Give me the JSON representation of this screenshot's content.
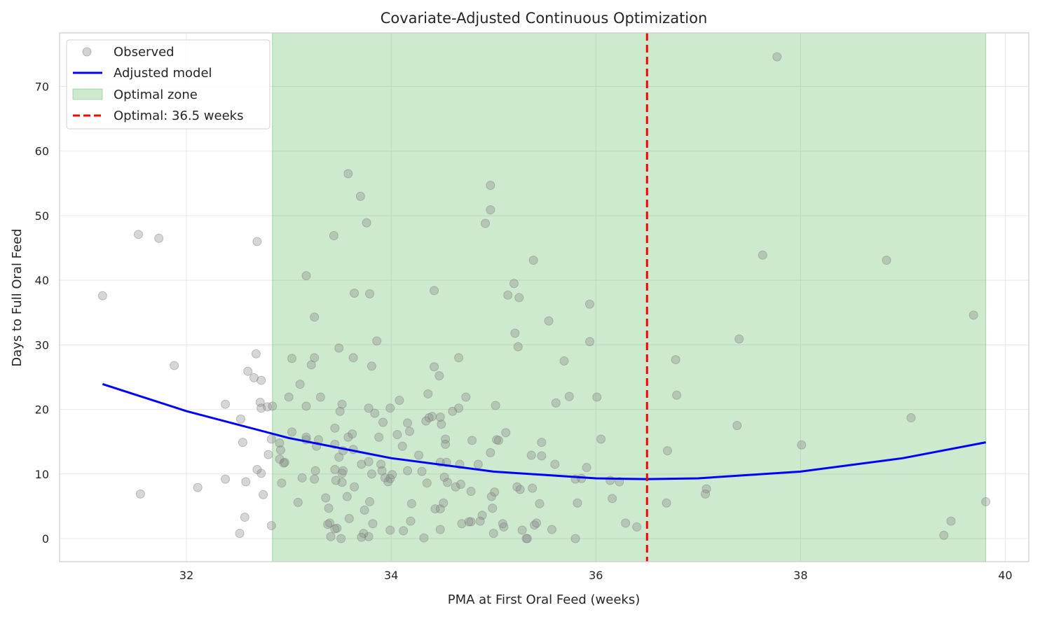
{
  "chart_data": {
    "type": "scatter",
    "title": "Covariate-Adjusted Continuous Optimization",
    "xlabel": "PMA at First Oral Feed (weeks)",
    "ylabel": "Days to Full Oral Feed",
    "xlim": [
      30.76,
      40.23
    ],
    "ylim": [
      -3.58,
      78.3
    ],
    "xticks": [
      32,
      34,
      36,
      38,
      40
    ],
    "yticks": [
      0,
      10,
      20,
      30,
      40,
      50,
      60,
      70
    ],
    "grid": true,
    "legend_position": "top-left",
    "legend": [
      "Observed",
      "Adjusted model",
      "Optimal zone",
      "Optimal: 36.5 weeks"
    ],
    "colors": {
      "observed": "#808080",
      "model": "#0000ff",
      "zone": "#4caf50",
      "optimal": "#ff0000"
    },
    "optimal_zone": [
      32.84,
      39.81
    ],
    "optimal_x": 36.5,
    "model_curve": {
      "x": [
        31.18,
        32,
        33,
        34,
        35,
        36,
        36.5,
        37,
        38,
        39,
        39.81
      ],
      "y": [
        23.92,
        19.73,
        15.57,
        12.45,
        10.37,
        9.33,
        9.2,
        9.33,
        10.37,
        12.45,
        14.9
      ]
    },
    "observed": [
      [
        31.18,
        37.6
      ],
      [
        31.53,
        47.1
      ],
      [
        31.73,
        46.5
      ],
      [
        31.55,
        6.9
      ],
      [
        31.88,
        26.8
      ],
      [
        32.11,
        7.9
      ],
      [
        32.38,
        20.8
      ],
      [
        32.38,
        9.2
      ],
      [
        32.53,
        18.5
      ],
      [
        32.55,
        14.9
      ],
      [
        32.57,
        3.3
      ],
      [
        32.58,
        8.8
      ],
      [
        32.52,
        0.8
      ],
      [
        32.6,
        25.9
      ],
      [
        32.66,
        24.9
      ],
      [
        32.68,
        28.6
      ],
      [
        32.69,
        46.0
      ],
      [
        32.69,
        10.7
      ],
      [
        32.72,
        21.1
      ],
      [
        32.73,
        24.5
      ],
      [
        32.73,
        20.2
      ],
      [
        32.73,
        10.1
      ],
      [
        32.75,
        6.8
      ],
      [
        32.79,
        20.4
      ],
      [
        32.8,
        13.0
      ],
      [
        32.84,
        20.5
      ],
      [
        32.83,
        15.4
      ],
      [
        32.83,
        2.0
      ],
      [
        32.91,
        14.8
      ],
      [
        32.92,
        13.7
      ],
      [
        32.91,
        12.3
      ],
      [
        32.95,
        11.7
      ],
      [
        32.93,
        8.6
      ],
      [
        32.96,
        11.8
      ],
      [
        33.03,
        27.9
      ],
      [
        33.03,
        16.5
      ],
      [
        33.0,
        21.9
      ],
      [
        33.09,
        5.6
      ],
      [
        33.11,
        23.9
      ],
      [
        33.13,
        9.4
      ],
      [
        33.17,
        40.7
      ],
      [
        33.17,
        20.5
      ],
      [
        33.17,
        15.7
      ],
      [
        33.17,
        15.3
      ],
      [
        33.22,
        26.9
      ],
      [
        33.25,
        34.3
      ],
      [
        33.25,
        28.0
      ],
      [
        33.25,
        9.2
      ],
      [
        33.26,
        10.5
      ],
      [
        33.27,
        14.3
      ],
      [
        33.29,
        15.3
      ],
      [
        33.31,
        21.9
      ],
      [
        33.36,
        6.3
      ],
      [
        33.39,
        4.7
      ],
      [
        33.38,
        2.2
      ],
      [
        33.4,
        2.4
      ],
      [
        33.41,
        0.3
      ],
      [
        33.44,
        46.9
      ],
      [
        33.45,
        17.1
      ],
      [
        33.45,
        14.6
      ],
      [
        33.45,
        10.7
      ],
      [
        33.46,
        9.0
      ],
      [
        33.47,
        1.6
      ],
      [
        33.45,
        1.5
      ],
      [
        33.49,
        29.5
      ],
      [
        33.49,
        12.6
      ],
      [
        33.5,
        19.7
      ],
      [
        33.52,
        20.8
      ],
      [
        33.52,
        10.1
      ],
      [
        33.52,
        8.7
      ],
      [
        33.53,
        10.5
      ],
      [
        33.53,
        13.6
      ],
      [
        33.51,
        0.0
      ],
      [
        33.58,
        56.5
      ],
      [
        33.58,
        15.7
      ],
      [
        33.57,
        6.5
      ],
      [
        33.59,
        3.1
      ],
      [
        33.62,
        16.2
      ],
      [
        33.63,
        28.0
      ],
      [
        33.63,
        13.8
      ],
      [
        33.64,
        38.0
      ],
      [
        33.64,
        8.0
      ],
      [
        33.7,
        53.0
      ],
      [
        33.71,
        11.5
      ],
      [
        33.71,
        0.2
      ],
      [
        33.74,
        4.4
      ],
      [
        33.73,
        0.8
      ],
      [
        33.76,
        48.9
      ],
      [
        33.78,
        20.2
      ],
      [
        33.78,
        11.9
      ],
      [
        33.79,
        37.9
      ],
      [
        33.79,
        5.7
      ],
      [
        33.78,
        0.3
      ],
      [
        33.81,
        26.7
      ],
      [
        33.81,
        10.0
      ],
      [
        33.82,
        2.3
      ],
      [
        33.84,
        19.4
      ],
      [
        33.86,
        30.6
      ],
      [
        33.88,
        15.7
      ],
      [
        33.9,
        11.5
      ],
      [
        33.92,
        18.0
      ],
      [
        33.94,
        9.4
      ],
      [
        33.91,
        10.5
      ],
      [
        33.97,
        8.8
      ],
      [
        33.99,
        20.2
      ],
      [
        33.99,
        9.3
      ],
      [
        34.01,
        9.9
      ],
      [
        33.99,
        1.3
      ],
      [
        34.06,
        16.1
      ],
      [
        34.08,
        21.4
      ],
      [
        34.11,
        14.3
      ],
      [
        34.12,
        1.2
      ],
      [
        34.16,
        17.9
      ],
      [
        34.18,
        16.6
      ],
      [
        34.16,
        10.5
      ],
      [
        34.2,
        5.4
      ],
      [
        34.19,
        2.7
      ],
      [
        34.27,
        12.9
      ],
      [
        34.3,
        10.4
      ],
      [
        34.32,
        0.1
      ],
      [
        34.36,
        22.4
      ],
      [
        34.34,
        18.2
      ],
      [
        34.35,
        8.6
      ],
      [
        34.37,
        18.7
      ],
      [
        34.4,
        18.9
      ],
      [
        34.42,
        38.4
      ],
      [
        34.42,
        26.6
      ],
      [
        34.43,
        4.6
      ],
      [
        34.47,
        25.2
      ],
      [
        34.48,
        4.6
      ],
      [
        34.48,
        11.8
      ],
      [
        34.48,
        18.8
      ],
      [
        34.49,
        17.7
      ],
      [
        34.48,
        1.4
      ],
      [
        34.53,
        15.4
      ],
      [
        34.53,
        14.6
      ],
      [
        34.54,
        11.8
      ],
      [
        34.52,
        9.5
      ],
      [
        34.55,
        8.7
      ],
      [
        34.51,
        5.5
      ],
      [
        34.6,
        19.7
      ],
      [
        34.63,
        8.0
      ],
      [
        34.66,
        28.0
      ],
      [
        34.66,
        20.2
      ],
      [
        34.67,
        11.5
      ],
      [
        34.68,
        8.4
      ],
      [
        34.69,
        2.3
      ],
      [
        34.73,
        21.9
      ],
      [
        34.76,
        2.6
      ],
      [
        34.78,
        2.6
      ],
      [
        34.78,
        7.3
      ],
      [
        34.79,
        15.2
      ],
      [
        34.85,
        11.5
      ],
      [
        34.87,
        2.7
      ],
      [
        34.89,
        3.6
      ],
      [
        34.92,
        48.8
      ],
      [
        34.97,
        54.7
      ],
      [
        34.97,
        50.9
      ],
      [
        34.97,
        13.3
      ],
      [
        34.98,
        6.5
      ],
      [
        34.99,
        4.7
      ],
      [
        35.01,
        7.2
      ],
      [
        35.0,
        0.8
      ],
      [
        35.02,
        20.6
      ],
      [
        35.03,
        15.3
      ],
      [
        35.05,
        15.2
      ],
      [
        35.09,
        2.3
      ],
      [
        35.1,
        1.8
      ],
      [
        35.12,
        16.4
      ],
      [
        35.14,
        37.7
      ],
      [
        35.2,
        39.5
      ],
      [
        35.21,
        31.8
      ],
      [
        35.23,
        8.0
      ],
      [
        35.24,
        29.7
      ],
      [
        35.25,
        37.3
      ],
      [
        35.26,
        7.6
      ],
      [
        35.28,
        1.3
      ],
      [
        35.32,
        0.0
      ],
      [
        35.33,
        0.0
      ],
      [
        35.37,
        12.9
      ],
      [
        35.39,
        43.1
      ],
      [
        35.38,
        7.8
      ],
      [
        35.4,
        2.1
      ],
      [
        35.42,
        2.4
      ],
      [
        35.45,
        5.4
      ],
      [
        35.47,
        14.9
      ],
      [
        35.47,
        12.8
      ],
      [
        35.54,
        33.7
      ],
      [
        35.57,
        1.4
      ],
      [
        35.6,
        11.5
      ],
      [
        35.61,
        21.0
      ],
      [
        35.69,
        27.5
      ],
      [
        35.74,
        22.0
      ],
      [
        35.8,
        9.2
      ],
      [
        35.8,
        0.0
      ],
      [
        35.82,
        5.5
      ],
      [
        35.86,
        9.3
      ],
      [
        35.91,
        11.0
      ],
      [
        35.94,
        36.3
      ],
      [
        35.94,
        30.5
      ],
      [
        36.01,
        21.9
      ],
      [
        36.05,
        15.4
      ],
      [
        36.14,
        9.0
      ],
      [
        36.16,
        6.2
      ],
      [
        36.23,
        8.8
      ],
      [
        36.29,
        2.4
      ],
      [
        36.4,
        1.8
      ],
      [
        36.7,
        13.6
      ],
      [
        36.69,
        5.5
      ],
      [
        36.78,
        27.7
      ],
      [
        36.79,
        22.2
      ],
      [
        37.07,
        6.9
      ],
      [
        37.08,
        7.7
      ],
      [
        37.38,
        17.5
      ],
      [
        37.4,
        30.9
      ],
      [
        37.63,
        43.9
      ],
      [
        37.77,
        74.6
      ],
      [
        38.01,
        14.5
      ],
      [
        38.84,
        43.1
      ],
      [
        39.08,
        18.7
      ],
      [
        39.4,
        0.5
      ],
      [
        39.47,
        2.7
      ],
      [
        39.69,
        34.6
      ],
      [
        39.81,
        5.7
      ]
    ]
  }
}
